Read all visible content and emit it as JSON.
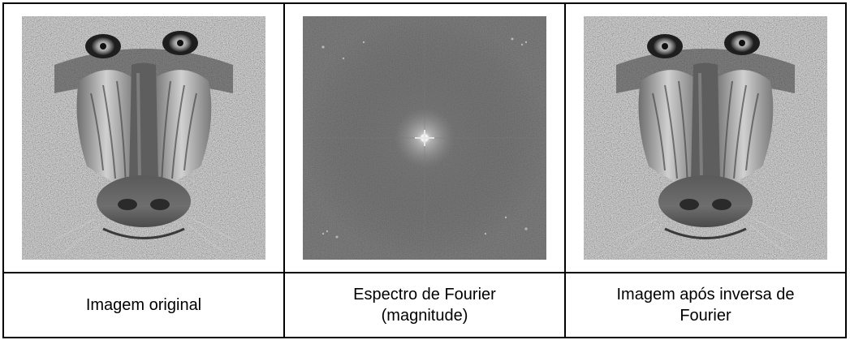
{
  "table": {
    "columns": [
      {
        "caption": "Imagem original",
        "image_icon": "baboon-photo-icon"
      },
      {
        "caption": "Espectro de Fourier (magnitude)",
        "image_icon": "fourier-spectrum-icon"
      },
      {
        "caption": "Imagem após inversa de Fourier",
        "image_icon": "baboon-photo-icon"
      }
    ]
  },
  "colors": {
    "border": "#000000",
    "spectrum_background": "#3a3a3a",
    "spectrum_center": "#f2f2f2",
    "photo_gray": "#8c8c8c"
  }
}
